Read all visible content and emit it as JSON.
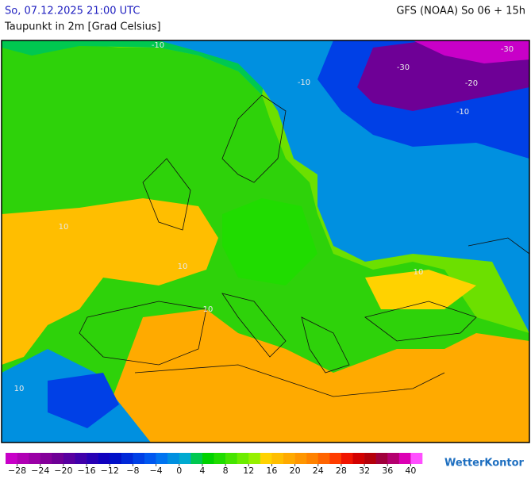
{
  "header": {
    "title": "So, 07.12.2025 21:00 UTC",
    "variable": "Taupunkt in 2m [Grad Celsius]",
    "model": "GFS (NOAA) So 06 + 15h"
  },
  "map": {
    "contour_labels": [
      "-10",
      "-30",
      "-30",
      "-20",
      "-10",
      "-10",
      "10",
      "10",
      "10",
      "10",
      "10"
    ]
  },
  "colorbar": {
    "range": [
      -30,
      42
    ],
    "colors": [
      "#c800c8",
      "#b000b4",
      "#9a00a6",
      "#84009a",
      "#6e0096",
      "#5800a0",
      "#4000aa",
      "#2800b4",
      "#1000be",
      "#0010c8",
      "#0028d8",
      "#0040e6",
      "#0058f0",
      "#0074f0",
      "#0090e0",
      "#00aad0",
      "#00c850",
      "#00d200",
      "#20dc00",
      "#46e400",
      "#6cec00",
      "#96f000",
      "#ffd200",
      "#ffbe00",
      "#ffaa00",
      "#ff9600",
      "#ff8200",
      "#ff6400",
      "#ff3c00",
      "#f01400",
      "#d20000",
      "#b4000a",
      "#a0003c",
      "#b4006e",
      "#dc00b4",
      "#ff50ff"
    ],
    "ticks": [
      {
        "value": -28,
        "label": "−28"
      },
      {
        "value": -24,
        "label": "−24"
      },
      {
        "value": -20,
        "label": "−20"
      },
      {
        "value": -16,
        "label": "−16"
      },
      {
        "value": -12,
        "label": "−12"
      },
      {
        "value": -8,
        "label": "−8"
      },
      {
        "value": -4,
        "label": "−4"
      },
      0,
      4,
      8,
      12,
      16,
      20,
      24,
      28,
      32,
      36,
      40
    ]
  },
  "brand": "WetterKontor"
}
